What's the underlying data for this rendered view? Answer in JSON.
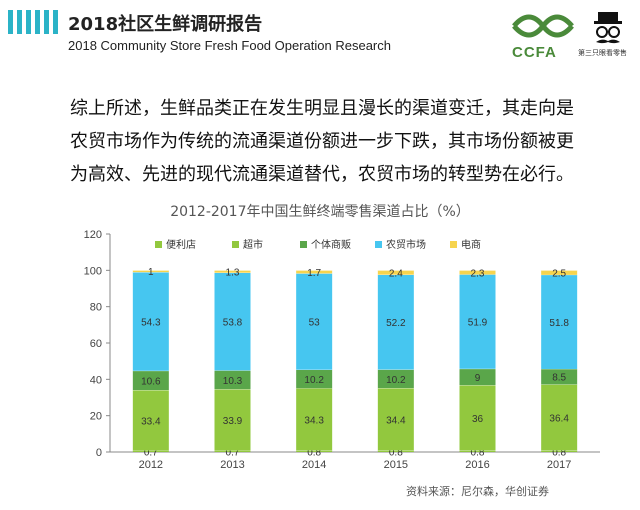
{
  "header": {
    "title_cn": "2018社区生鲜调研报告",
    "title_en": "2018 Community Store Fresh Food Operation Research",
    "logo_text": "CCFA",
    "logo_right_caption": "第三只眼看零售"
  },
  "summary": {
    "line1": "综上所述，生鲜品类正在发生明显且漫长的渠道变迁，其走向是",
    "line2": "农贸市场作为传统的流通渠道份额进一步下跌，其市场份额被更",
    "line3": "为高效、先进的现代流通渠道替代，农贸市场的转型势在必行。"
  },
  "source": "资料来源：尼尔森，华创证券",
  "chart_data": {
    "type": "bar",
    "stacked": true,
    "title": "2012-2017年中国生鲜终端零售渠道占比（%）",
    "categories": [
      "2012",
      "2013",
      "2014",
      "2015",
      "2016",
      "2017"
    ],
    "ylim": [
      0,
      120
    ],
    "yticks": [
      0,
      20,
      40,
      60,
      80,
      100,
      120
    ],
    "grid": false,
    "legend_position": "top",
    "series": [
      {
        "name": "便利店",
        "color": "#92c83e",
        "values": [
          0.7,
          0.7,
          0.8,
          0.8,
          0.8,
          0.8
        ]
      },
      {
        "name": "超市",
        "color": "#92c83e",
        "values": [
          33.4,
          33.9,
          34.3,
          34.4,
          36,
          36.4
        ]
      },
      {
        "name": "个体商贩",
        "color": "#5aa64a",
        "values": [
          10.6,
          10.3,
          10.2,
          10.2,
          9,
          8.5
        ]
      },
      {
        "name": "农贸市场",
        "color": "#46c6f0",
        "values": [
          54.3,
          53.8,
          53,
          52.2,
          51.9,
          51.8
        ]
      },
      {
        "name": "电商",
        "color": "#f6d44e",
        "values": [
          1,
          1.3,
          1.7,
          2.4,
          2.3,
          2.5
        ]
      }
    ],
    "label_texts": [
      [
        "0.7",
        "0.7",
        "0.8",
        "0.8",
        "0.8",
        "0.8"
      ],
      [
        "33.4",
        "33.9",
        "34.3",
        "34.4",
        "36",
        "36.4"
      ],
      [
        "10.6",
        "10.3",
        "10.2",
        "10.2",
        "9",
        "8.5"
      ],
      [
        "54.3",
        "53.8",
        "53",
        "52.2",
        "51.9",
        "51.8"
      ],
      [
        "1",
        "1.3",
        "1.7",
        "2.4",
        "2.3",
        "2.5"
      ]
    ]
  }
}
